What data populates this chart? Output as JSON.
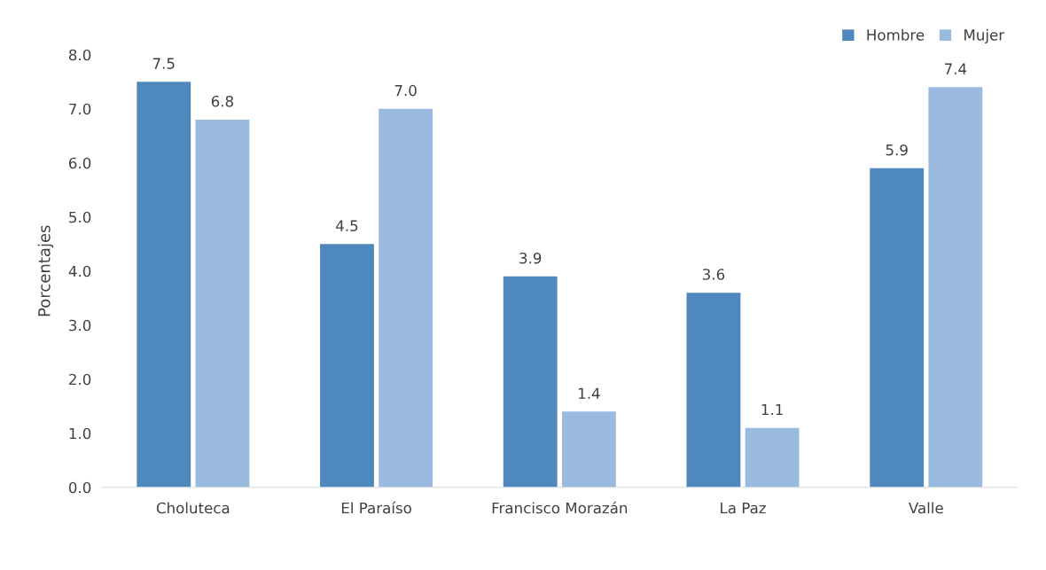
{
  "chart_data": {
    "type": "bar",
    "ylabel": "Porcentajes",
    "categories": [
      "Choluteca",
      "El Paraíso",
      "Francisco Morazán",
      "La Paz",
      "Valle"
    ],
    "series": [
      {
        "name": "Hombre",
        "color": "#4f88bd",
        "values": [
          7.5,
          4.5,
          3.9,
          3.6,
          5.9
        ],
        "value_labels": [
          "7.5",
          "4.5",
          "3.9",
          "3.6",
          "5.9"
        ]
      },
      {
        "name": "Mujer",
        "color": "#9bbae0",
        "values": [
          6.8,
          7.0,
          1.4,
          1.1,
          7.4
        ],
        "value_labels": [
          "6.8",
          "7.0",
          "1.4",
          "1.1",
          "7.4"
        ]
      }
    ],
    "ylim": [
      0,
      8
    ],
    "yticks": [
      {
        "value": 0,
        "label": "0.0"
      },
      {
        "value": 1,
        "label": "1.0"
      },
      {
        "value": 2,
        "label": "2.0"
      },
      {
        "value": 3,
        "label": "3.0"
      },
      {
        "value": 4,
        "label": "4.0"
      },
      {
        "value": 5,
        "label": "5.0"
      },
      {
        "value": 6,
        "label": "6.0"
      },
      {
        "value": 7,
        "label": "7.0"
      },
      {
        "value": 8,
        "label": "8.0"
      }
    ],
    "grid": false,
    "legend": "top right"
  }
}
